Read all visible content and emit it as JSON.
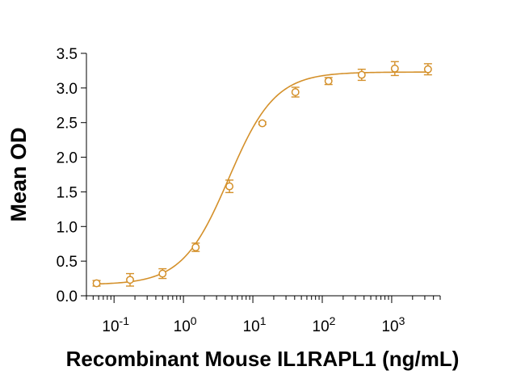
{
  "chart_data": {
    "type": "scatter",
    "title": "",
    "xlabel": "Recombinant Mouse IL1RAPL1 (ng/mL)",
    "ylabel": "Mean OD",
    "x_scale": "log",
    "xlim": [
      0.04,
      5000
    ],
    "ylim": [
      0,
      3.5
    ],
    "grid": false,
    "legend": "none",
    "color": "#D4902A",
    "yticks": [
      {
        "value": 0.0,
        "label": "0.0"
      },
      {
        "value": 0.5,
        "label": "0.5"
      },
      {
        "value": 1.0,
        "label": "1.0"
      },
      {
        "value": 1.5,
        "label": "1.5"
      },
      {
        "value": 2.0,
        "label": "2.0"
      },
      {
        "value": 2.5,
        "label": "2.5"
      },
      {
        "value": 3.0,
        "label": "3.0"
      },
      {
        "value": 3.5,
        "label": "3.5"
      }
    ],
    "xticks": [
      {
        "value": 0.1,
        "base": "10",
        "exp": "-1"
      },
      {
        "value": 1,
        "base": "10",
        "exp": "0"
      },
      {
        "value": 10,
        "base": "10",
        "exp": "1"
      },
      {
        "value": 100,
        "base": "10",
        "exp": "2"
      },
      {
        "value": 1000,
        "base": "10",
        "exp": "3"
      }
    ],
    "points": [
      {
        "x": 0.056,
        "y": 0.18,
        "err": 0.04
      },
      {
        "x": 0.17,
        "y": 0.23,
        "err": 0.09
      },
      {
        "x": 0.5,
        "y": 0.32,
        "err": 0.07
      },
      {
        "x": 1.5,
        "y": 0.7,
        "err": 0.06
      },
      {
        "x": 4.6,
        "y": 1.58,
        "err": 0.09
      },
      {
        "x": 13.7,
        "y": 2.49,
        "err": 0.02
      },
      {
        "x": 41,
        "y": 2.94,
        "err": 0.07
      },
      {
        "x": 123,
        "y": 3.1,
        "err": 0.05
      },
      {
        "x": 370,
        "y": 3.19,
        "err": 0.08
      },
      {
        "x": 1110,
        "y": 3.28,
        "err": 0.1
      },
      {
        "x": 3333,
        "y": 3.27,
        "err": 0.08
      }
    ],
    "fit": {
      "model": "4PL",
      "bottom": 0.16,
      "top": 3.23,
      "ec50": 4.5,
      "hill": 1.3
    }
  }
}
